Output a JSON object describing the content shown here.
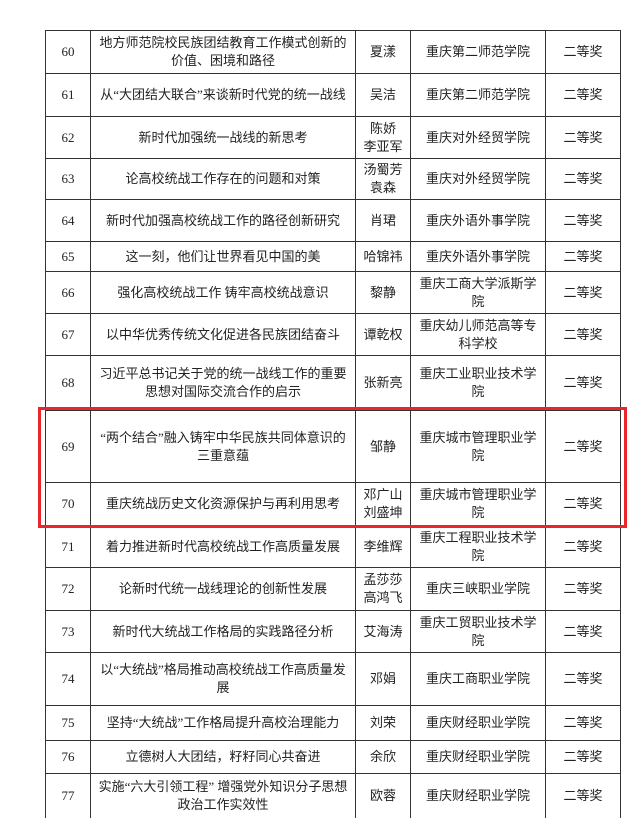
{
  "table": {
    "rows": [
      [
        "60",
        "地方师范院校民族团结教育工作模式创新的价值、困境和路径",
        "夏漾",
        "重庆第二师范学院",
        "二等奖"
      ],
      [
        "61",
        "从“大团结大联合”来谈新时代党的统一战线",
        "吴洁",
        "重庆第二师范学院",
        "二等奖"
      ],
      [
        "62",
        "新时代加强统一战线的新思考",
        "陈娇 李亚军",
        "重庆对外经贸学院",
        "二等奖"
      ],
      [
        "63",
        "论高校统战工作存在的问题和对策",
        "汤蜀芳 袁森",
        "重庆对外经贸学院",
        "二等奖"
      ],
      [
        "64",
        "新时代加强高校统战工作的路径创新研究",
        "肖珺",
        "重庆外语外事学院",
        "二等奖"
      ],
      [
        "65",
        "这一刻，他们让世界看见中国的美",
        "哈锦祎",
        "重庆外语外事学院",
        "二等奖"
      ],
      [
        "66",
        "强化高校统战工作 铸牢高校统战意识",
        "黎静",
        "重庆工商大学派斯学院",
        "二等奖"
      ],
      [
        "67",
        "以中华优秀传统文化促进各民族团结奋斗",
        "谭乾权",
        "重庆幼儿师范高等专科学校",
        "二等奖"
      ],
      [
        "68",
        "习近平总书记关于党的统一战线工作的重要思想对国际交流合作的启示",
        "张新亮",
        "重庆工业职业技术学院",
        "二等奖"
      ],
      [
        "69",
        "“两个结合”融入铸牢中华民族共同体意识的三重意蕴",
        "邹静",
        "重庆城市管理职业学院",
        "二等奖"
      ],
      [
        "70",
        "重庆统战历史文化资源保护与再利用思考",
        "邓广山 刘盛坤",
        "重庆城市管理职业学院",
        "二等奖"
      ],
      [
        "71",
        "着力推进新时代高校统战工作高质量发展",
        "李维辉",
        "重庆工程职业技术学院",
        "二等奖"
      ],
      [
        "72",
        "论新时代统一战线理论的创新性发展",
        "孟莎莎 高鸿飞",
        "重庆三峡职业学院",
        "二等奖"
      ],
      [
        "73",
        "新时代大统战工作格局的实践路径分析",
        "艾海涛",
        "重庆工贸职业技术学院",
        "二等奖"
      ],
      [
        "74",
        "以“大统战”格局推动高校统战工作高质量发展",
        "邓娟",
        "重庆工商职业学院",
        "二等奖"
      ],
      [
        "75",
        "坚持“大统战”工作格局提升高校治理能力",
        "刘荣",
        "重庆财经职业学院",
        "二等奖"
      ],
      [
        "76",
        "立德树人大团结，籽籽同心共奋进",
        "余欣",
        "重庆财经职业学院",
        "二等奖"
      ],
      [
        "77",
        "实施“六大引领工程” 增强党外知识分子思想政治工作实效性",
        "欧蓉",
        "重庆财经职业学院",
        "二等奖"
      ]
    ]
  }
}
